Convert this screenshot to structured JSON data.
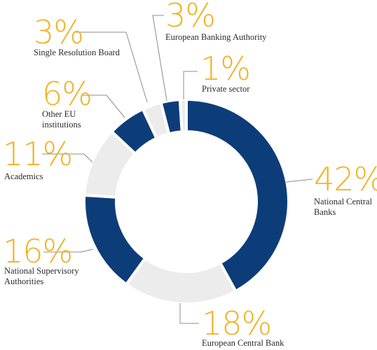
{
  "chart_data": {
    "type": "pie",
    "donut": true,
    "start_angle_deg": 0,
    "direction": "clockwise",
    "slices": [
      {
        "label": "National Central Banks",
        "value": 42,
        "display": "42%",
        "color": "#0d3d78"
      },
      {
        "label": "European Central Bank",
        "value": 18,
        "display": "18%",
        "color": "#ececec"
      },
      {
        "label": "National Supervisory Authorities",
        "value": 16,
        "display": "16%",
        "color": "#0d3d78"
      },
      {
        "label": "Academics",
        "value": 11,
        "display": "11%",
        "color": "#ececec"
      },
      {
        "label": "Other EU institutions",
        "value": 6,
        "display": "6%",
        "color": "#0d3d78"
      },
      {
        "label": "Single Resolution Board",
        "value": 3,
        "display": "3%",
        "color": "#ececec"
      },
      {
        "label": "European Banking Authority",
        "value": 3,
        "display": "3%",
        "color": "#0d3d78"
      },
      {
        "label": "Private sector",
        "value": 1,
        "display": "1%",
        "color": "#ececec"
      }
    ],
    "label_lines": {
      "National Central Banks": [
        "National Central",
        "Banks"
      ],
      "European Central Bank": [
        "European Central Bank"
      ],
      "National Supervisory Authorities": [
        "National Supervisory",
        "Authorities"
      ],
      "Academics": [
        "Academics"
      ],
      "Other EU institutions": [
        "Other EU",
        "institutions"
      ],
      "Single Resolution Board": [
        "Single Resolution Board"
      ],
      "European Banking Authority": [
        "European Banking Authority"
      ],
      "Private sector": [
        "Private sector"
      ]
    },
    "colors": {
      "percent_text": "#f0b429",
      "label_text": "#2b2b2b",
      "leader_line": "#8c8c8c",
      "slice_separator": "#ffffff"
    },
    "legend": "none"
  }
}
